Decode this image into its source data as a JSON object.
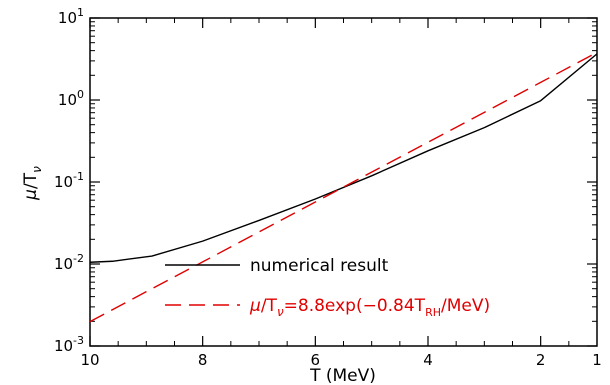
{
  "chart_data": {
    "type": "line",
    "title": "",
    "xlabel": "T (MeV)",
    "ylabel": "μ/T_ν",
    "x_reversed": true,
    "xlim": [
      1,
      10
    ],
    "ylim": [
      0.001,
      10
    ],
    "y_scale": "log",
    "x_ticks": [
      {
        "value": 10,
        "label": "10"
      },
      {
        "value": 8,
        "label": "8"
      },
      {
        "value": 6,
        "label": "6"
      },
      {
        "value": 4,
        "label": "4"
      },
      {
        "value": 2,
        "label": "2"
      },
      {
        "value": 1,
        "label": "1"
      }
    ],
    "y_ticks": [
      {
        "value": 0.001,
        "base": "10",
        "exp": "-3"
      },
      {
        "value": 0.01,
        "base": "10",
        "exp": "-2"
      },
      {
        "value": 0.1,
        "base": "10",
        "exp": "-1"
      },
      {
        "value": 1,
        "base": "10",
        "exp": "0"
      },
      {
        "value": 10,
        "base": "10",
        "exp": "1"
      }
    ],
    "grid": false,
    "legend_position": "bottom-center",
    "series": [
      {
        "name": "numerical result",
        "color": "#000000",
        "dash": "solid",
        "x": [
          10,
          9.6,
          8.9,
          8.0,
          7.0,
          6.0,
          5.0,
          4.0,
          3.0,
          2.0,
          1.0
        ],
        "y": [
          0.0105,
          0.0108,
          0.0125,
          0.019,
          0.034,
          0.062,
          0.119,
          0.24,
          0.46,
          0.98,
          3.65
        ]
      },
      {
        "name": "μ/T_ν=8.8exp(−0.84T_RH/MeV)",
        "color": "#e00000",
        "dash": "long-dash",
        "x": [
          10,
          9.0,
          8.0,
          7.0,
          6.0,
          5.0,
          4.0,
          3.0,
          2.0,
          1.0
        ],
        "y": [
          0.00198,
          0.0046,
          0.0106,
          0.0246,
          0.057,
          0.132,
          0.305,
          0.707,
          1.64,
          3.8
        ]
      }
    ],
    "legend": {
      "entry1": "numerical result",
      "entry2": {
        "mu": "μ",
        "slash_t": "/T",
        "nu": "ν",
        "eq": "=8.8exp(−0.84T",
        "rh": "RH",
        "tail": "/MeV)"
      }
    },
    "axis_labels": {
      "x": "T (MeV)",
      "y_mu": "μ",
      "y_slash_t": "/T",
      "y_nu": "ν"
    }
  }
}
